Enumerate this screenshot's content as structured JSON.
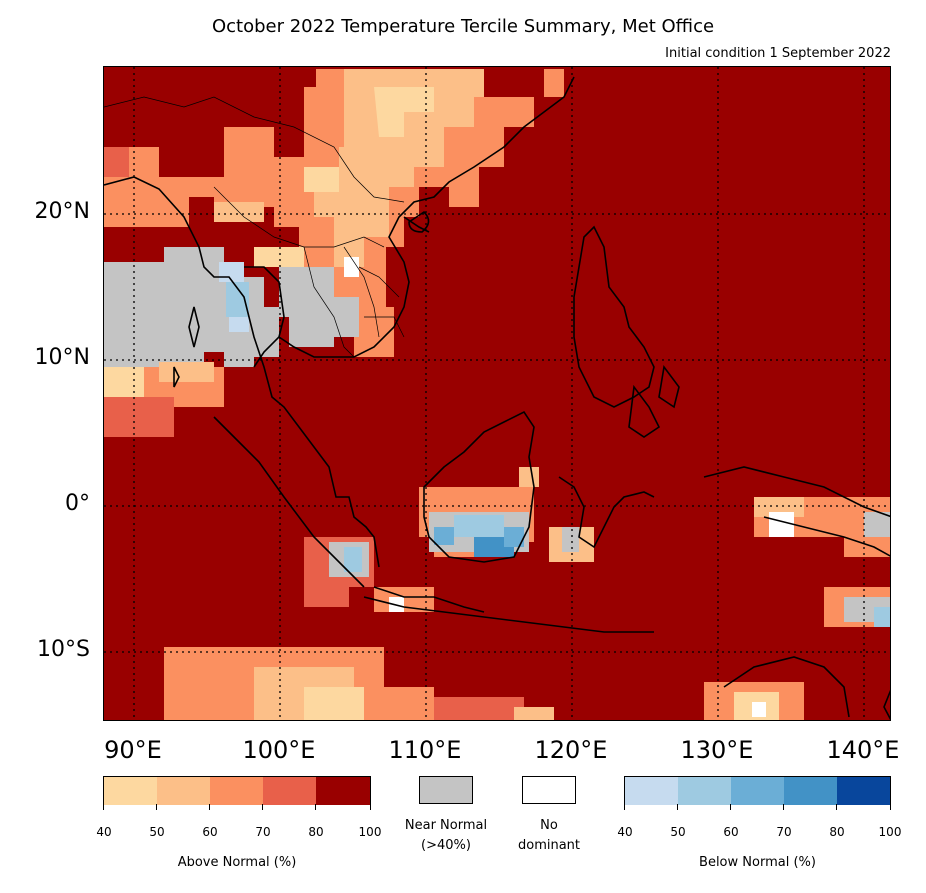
{
  "header": {
    "title": "October 2022 Temperature Tercile Summary, Met Office",
    "subtitle": "Initial condition 1 September 2022"
  },
  "map": {
    "region": "Southeast Asia",
    "background_category": "Above Normal 80-100%",
    "colors": {
      "above_80_100": "#990000",
      "above_70_80": "#e8604a",
      "above_60_70": "#fb9060",
      "above_50_60": "#fcbf88",
      "above_40_50": "#fdd8a0",
      "near_normal": "#c4c4c4",
      "no_dominant": "#ffffff",
      "below_40_50": "#c6dbef",
      "below_50_60": "#9ecae1",
      "below_60_70": "#6baed6",
      "below_70_80": "#4292c6",
      "below_80_100": "#08469c"
    },
    "lat_labels": [
      "20°N",
      "10°N",
      "0°",
      "10°S"
    ],
    "lon_labels": [
      "90°E",
      "100°E",
      "110°E",
      "120°E",
      "130°E",
      "140°E"
    ],
    "gridlines": "dotted"
  },
  "legend": {
    "above": {
      "label": "Above Normal (%)",
      "ticks": [
        "40",
        "50",
        "60",
        "70",
        "80",
        "100"
      ],
      "colors": [
        "#fdd8a0",
        "#fcbf88",
        "#fb9060",
        "#e8604a",
        "#990000"
      ]
    },
    "near_normal": {
      "label_line1": "Near Normal",
      "label_line2": "(>40%)",
      "color": "#c4c4c4"
    },
    "no_dominant": {
      "label_line1": "No",
      "label_line2": "dominant",
      "color": "#ffffff"
    },
    "below": {
      "label": "Below Normal (%)",
      "ticks": [
        "40",
        "50",
        "60",
        "70",
        "80",
        "100"
      ],
      "colors": [
        "#c6dbef",
        "#9ecae1",
        "#6baed6",
        "#4292c6",
        "#08469c"
      ]
    }
  }
}
